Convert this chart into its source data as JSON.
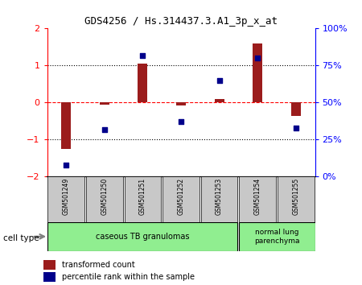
{
  "title": "GDS4256 / Hs.314437.3.A1_3p_x_at",
  "samples": [
    "GSM501249",
    "GSM501250",
    "GSM501251",
    "GSM501252",
    "GSM501253",
    "GSM501254",
    "GSM501255"
  ],
  "transformed_count": [
    -1.25,
    -0.05,
    1.05,
    -0.07,
    0.1,
    1.6,
    -0.35
  ],
  "percentile_rank": [
    8,
    32,
    82,
    37,
    65,
    80,
    33
  ],
  "ylim_left": [
    -2,
    2
  ],
  "ylim_right": [
    0,
    100
  ],
  "bar_color": "#9B1C1C",
  "dot_color": "#00008B",
  "sample_box_color": "#C8C8C8",
  "group1_label": "caseous TB granulomas",
  "group2_label": "normal lung\nparenchyma",
  "group_color": "#90EE90",
  "cell_type_label": "cell type",
  "legend_items": [
    {
      "label": "transformed count",
      "color": "#9B1C1C"
    },
    {
      "label": "percentile rank within the sample",
      "color": "#00008B"
    }
  ],
  "yticks_left": [
    -2,
    -1,
    0,
    1,
    2
  ],
  "yticks_right": [
    0,
    25,
    50,
    75,
    100
  ],
  "ytick_labels_right": [
    "0%",
    "25%",
    "50%",
    "75%",
    "100%"
  ]
}
